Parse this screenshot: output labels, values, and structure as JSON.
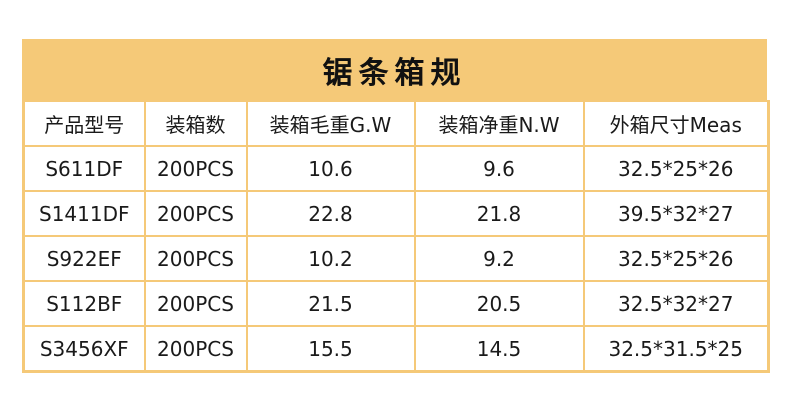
{
  "title": "锯条箱规",
  "colors": {
    "accent": "#f5c978",
    "text": "#1a1a1a",
    "background": "#ffffff"
  },
  "table": {
    "headers": [
      "产品型号",
      "装箱数",
      "装箱毛重G.W",
      "装箱净重N.W",
      "外箱尺寸Meas"
    ],
    "rows": [
      [
        "S611DF",
        "200PCS",
        "10.6",
        "9.6",
        "32.5*25*26"
      ],
      [
        "S1411DF",
        "200PCS",
        "22.8",
        "21.8",
        "39.5*32*27"
      ],
      [
        "S922EF",
        "200PCS",
        "10.2",
        "9.2",
        "32.5*25*26"
      ],
      [
        "S112BF",
        "200PCS",
        "21.5",
        "20.5",
        "32.5*32*27"
      ],
      [
        "S3456XF",
        "200PCS",
        "15.5",
        "14.5",
        "32.5*31.5*25"
      ]
    ]
  }
}
